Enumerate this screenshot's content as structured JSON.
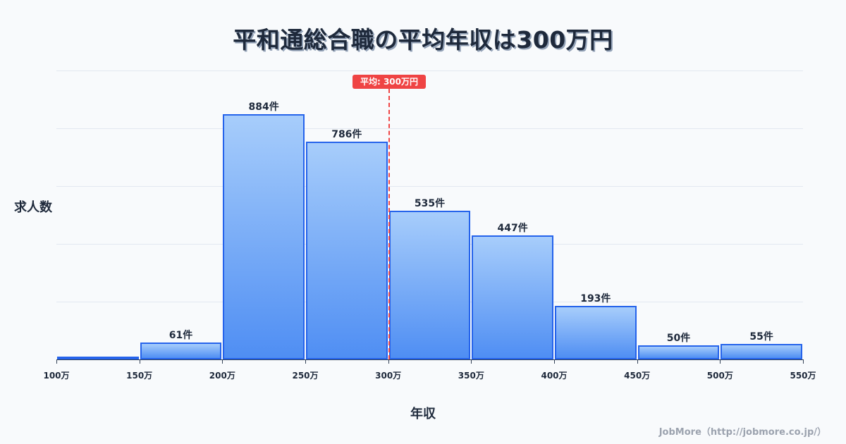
{
  "header": {
    "title": "平和通総合職の平均年収は300万円"
  },
  "axes": {
    "ylabel": "求人数",
    "xlabel": "年収"
  },
  "mean_badge": "平均: 300万円",
  "footer": "JobMore（http://jobmore.co.jp/）",
  "ticks": [
    "100万",
    "150万",
    "200万",
    "250万",
    "300万",
    "350万",
    "400万",
    "450万",
    "500万",
    "550万"
  ],
  "bars": [
    {
      "range": "100万-150万",
      "label": "",
      "value": 4
    },
    {
      "range": "150万-200万",
      "label": "61件",
      "value": 61
    },
    {
      "range": "200万-250万",
      "label": "884件",
      "value": 884
    },
    {
      "range": "250万-300万",
      "label": "786件",
      "value": 786
    },
    {
      "range": "300万-350万",
      "label": "535件",
      "value": 535
    },
    {
      "range": "350万-400万",
      "label": "447件",
      "value": 447
    },
    {
      "range": "400万-450万",
      "label": "193件",
      "value": 193
    },
    {
      "range": "450万-500万",
      "label": "50件",
      "value": 50
    },
    {
      "range": "500万-550万",
      "label": "55件",
      "value": 55
    }
  ],
  "colors": {
    "bar_border": "#2563eb",
    "bar_top": "#a7cdfb",
    "bar_bottom": "#4f8ef3",
    "mean": "#ef4444",
    "text": "#1e293b",
    "background": "#f8fafc"
  },
  "chart_data": {
    "type": "bar",
    "title": "平和通総合職の平均年収は300万円",
    "xlabel": "年収",
    "ylabel": "求人数",
    "categories": [
      "100万-150万",
      "150万-200万",
      "200万-250万",
      "250万-300万",
      "300万-350万",
      "350万-400万",
      "400万-450万",
      "450万-500万",
      "500万-550万"
    ],
    "values": [
      4,
      61,
      884,
      786,
      535,
      447,
      193,
      50,
      55
    ],
    "x_ticks": [
      "100万",
      "150万",
      "200万",
      "250万",
      "300万",
      "350万",
      "400万",
      "450万",
      "500万",
      "550万"
    ],
    "annotations": [
      {
        "type": "vline",
        "x": "300万",
        "label": "平均: 300万円",
        "color": "#ef4444",
        "style": "dashed"
      }
    ],
    "grid": true,
    "legend": "none"
  }
}
